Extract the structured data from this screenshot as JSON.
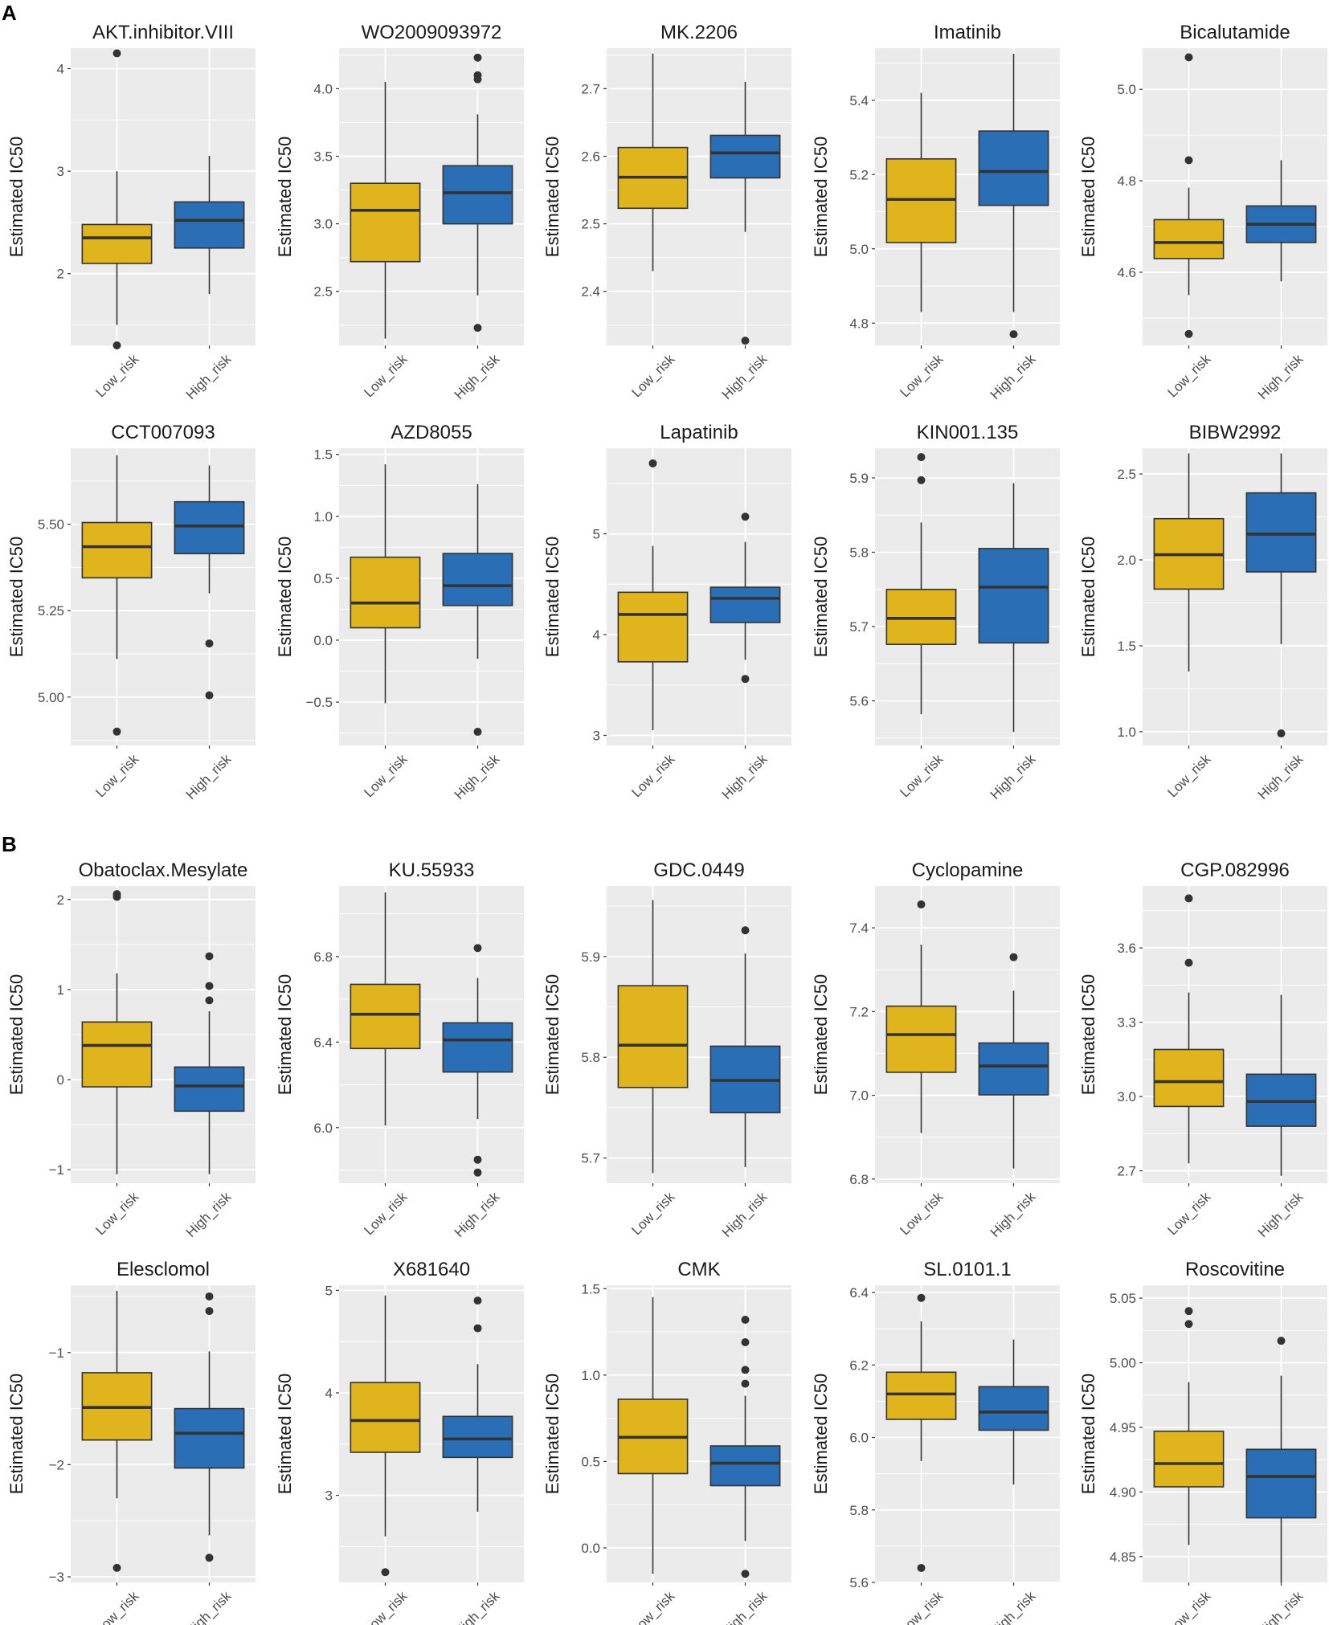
{
  "figure": {
    "panels": [
      "A",
      "B"
    ],
    "y_axis_label": "Estimated IC50",
    "groups": [
      "Low_risk",
      "High_risk"
    ],
    "colors": {
      "low": "#E0B41D",
      "high": "#2A6EB5",
      "panel_bg": "#EBEBEB",
      "grid": "#FFFFFF",
      "line": "#333333"
    }
  },
  "chart_data": [
    {
      "type": "box",
      "panel": "A",
      "title": "AKT.inhibitor.VIII",
      "ylabel": "Estimated IC50",
      "categories": [
        "Low_risk",
        "High_risk"
      ],
      "ylim": [
        1.3,
        4.2
      ],
      "yticks": [
        2,
        3,
        4
      ],
      "tick_labels": [
        "2",
        "3",
        "4"
      ],
      "boxes": [
        {
          "min": 1.5,
          "q1": 2.1,
          "median": 2.35,
          "q3": 2.48,
          "max": 3.0,
          "outliers": [
            4.15,
            1.3
          ]
        },
        {
          "min": 1.8,
          "q1": 2.25,
          "median": 2.52,
          "q3": 2.7,
          "max": 3.15,
          "outliers": []
        }
      ]
    },
    {
      "type": "box",
      "panel": "A",
      "title": "WO2009093972",
      "ylabel": "Estimated IC50",
      "categories": [
        "Low_risk",
        "High_risk"
      ],
      "ylim": [
        2.1,
        4.3
      ],
      "yticks": [
        2.5,
        3.0,
        3.5,
        4.0
      ],
      "tick_labels": [
        "2.5",
        "3.0",
        "3.5",
        "4.0"
      ],
      "boxes": [
        {
          "min": 2.15,
          "q1": 2.72,
          "median": 3.1,
          "q3": 3.3,
          "max": 4.05,
          "outliers": []
        },
        {
          "min": 2.47,
          "q1": 3.0,
          "median": 3.23,
          "q3": 3.43,
          "max": 3.81,
          "outliers": [
            4.23,
            4.1,
            4.07,
            2.23
          ]
        }
      ]
    },
    {
      "type": "box",
      "panel": "A",
      "title": "MK.2206",
      "ylabel": "Estimated IC50",
      "categories": [
        "Low_risk",
        "High_risk"
      ],
      "ylim": [
        2.32,
        2.76
      ],
      "yticks": [
        2.4,
        2.5,
        2.6,
        2.7
      ],
      "tick_labels": [
        "2.4",
        "2.5",
        "2.6",
        "2.7"
      ],
      "boxes": [
        {
          "min": 2.43,
          "q1": 2.523,
          "median": 2.569,
          "q3": 2.613,
          "max": 2.752,
          "outliers": []
        },
        {
          "min": 2.488,
          "q1": 2.568,
          "median": 2.605,
          "q3": 2.631,
          "max": 2.71,
          "outliers": [
            2.327
          ]
        }
      ]
    },
    {
      "type": "box",
      "panel": "A",
      "title": "Imatinib",
      "ylabel": "Estimated IC50",
      "categories": [
        "Low_risk",
        "High_risk"
      ],
      "ylim": [
        4.74,
        5.54
      ],
      "yticks": [
        4.8,
        5.0,
        5.2,
        5.4
      ],
      "tick_labels": [
        "4.8",
        "5.0",
        "5.2",
        "5.4"
      ],
      "boxes": [
        {
          "min": 4.83,
          "q1": 5.017,
          "median": 5.133,
          "q3": 5.242,
          "max": 5.42,
          "outliers": []
        },
        {
          "min": 4.83,
          "q1": 5.117,
          "median": 5.208,
          "q3": 5.317,
          "max": 5.525,
          "outliers": [
            4.77
          ]
        }
      ]
    },
    {
      "type": "box",
      "panel": "A",
      "title": "Bicalutamide",
      "ylabel": "Estimated IC50",
      "categories": [
        "Low_risk",
        "High_risk"
      ],
      "ylim": [
        4.44,
        5.09
      ],
      "yticks": [
        4.6,
        4.8,
        5.0
      ],
      "tick_labels": [
        "4.6",
        "4.8",
        "5.0"
      ],
      "boxes": [
        {
          "min": 4.55,
          "q1": 4.63,
          "median": 4.665,
          "q3": 4.715,
          "max": 4.785,
          "outliers": [
            5.07,
            4.845,
            4.465
          ]
        },
        {
          "min": 4.58,
          "q1": 4.665,
          "median": 4.705,
          "q3": 4.745,
          "max": 4.845,
          "outliers": []
        }
      ]
    },
    {
      "type": "box",
      "panel": "A",
      "title": "CCT007093",
      "ylabel": "Estimated IC50",
      "categories": [
        "Low_risk",
        "High_risk"
      ],
      "ylim": [
        4.86,
        5.72
      ],
      "yticks": [
        5.0,
        5.25,
        5.5
      ],
      "tick_labels": [
        "5.00",
        "5.25",
        "5.50"
      ],
      "boxes": [
        {
          "min": 5.11,
          "q1": 5.345,
          "median": 5.435,
          "q3": 5.505,
          "max": 5.7,
          "outliers": [
            4.9
          ]
        },
        {
          "min": 5.3,
          "q1": 5.415,
          "median": 5.495,
          "q3": 5.565,
          "max": 5.67,
          "outliers": [
            5.155,
            5.005
          ]
        }
      ]
    },
    {
      "type": "box",
      "panel": "A",
      "title": "AZD8055",
      "ylabel": "Estimated IC50",
      "categories": [
        "Low_risk",
        "High_risk"
      ],
      "ylim": [
        -0.85,
        1.55
      ],
      "yticks": [
        -0.5,
        0.0,
        0.5,
        1.0,
        1.5
      ],
      "tick_labels": [
        "−0.5",
        "0.0",
        "0.5",
        "1.0",
        "1.5"
      ],
      "boxes": [
        {
          "min": -0.51,
          "q1": 0.1,
          "median": 0.3,
          "q3": 0.67,
          "max": 1.42,
          "outliers": []
        },
        {
          "min": -0.15,
          "q1": 0.28,
          "median": 0.44,
          "q3": 0.7,
          "max": 1.26,
          "outliers": [
            -0.74
          ]
        }
      ]
    },
    {
      "type": "box",
      "panel": "A",
      "title": "Lapatinib",
      "ylabel": "Estimated IC50",
      "categories": [
        "Low_risk",
        "High_risk"
      ],
      "ylim": [
        2.9,
        5.85
      ],
      "yticks": [
        3,
        4,
        5
      ],
      "tick_labels": [
        "3",
        "4",
        "5"
      ],
      "boxes": [
        {
          "min": 3.05,
          "q1": 3.73,
          "median": 4.2,
          "q3": 4.42,
          "max": 4.88,
          "outliers": [
            5.7
          ]
        },
        {
          "min": 3.75,
          "q1": 4.12,
          "median": 4.36,
          "q3": 4.47,
          "max": 4.92,
          "outliers": [
            5.17,
            3.56
          ]
        }
      ]
    },
    {
      "type": "box",
      "panel": "A",
      "title": "KIN001.135",
      "ylabel": "Estimated IC50",
      "categories": [
        "Low_risk",
        "High_risk"
      ],
      "ylim": [
        5.54,
        5.94
      ],
      "yticks": [
        5.6,
        5.7,
        5.8,
        5.9
      ],
      "tick_labels": [
        "5.6",
        "5.7",
        "5.8",
        "5.9"
      ],
      "boxes": [
        {
          "min": 5.582,
          "q1": 5.676,
          "median": 5.711,
          "q3": 5.75,
          "max": 5.84,
          "outliers": [
            5.928,
            5.897
          ]
        },
        {
          "min": 5.558,
          "q1": 5.678,
          "median": 5.753,
          "q3": 5.805,
          "max": 5.893,
          "outliers": []
        }
      ]
    },
    {
      "type": "box",
      "panel": "A",
      "title": "BIBW2992",
      "ylabel": "Estimated IC50",
      "categories": [
        "Low_risk",
        "High_risk"
      ],
      "ylim": [
        0.92,
        2.65
      ],
      "yticks": [
        1.0,
        1.5,
        2.0,
        2.5
      ],
      "tick_labels": [
        "1.0",
        "1.5",
        "2.0",
        "2.5"
      ],
      "boxes": [
        {
          "min": 1.35,
          "q1": 1.83,
          "median": 2.03,
          "q3": 2.24,
          "max": 2.62,
          "outliers": []
        },
        {
          "min": 1.51,
          "q1": 1.93,
          "median": 2.15,
          "q3": 2.39,
          "max": 2.62,
          "outliers": [
            0.99
          ]
        }
      ]
    },
    {
      "type": "box",
      "panel": "B",
      "title": "Obatoclax.Mesylate",
      "ylabel": "Estimated IC50",
      "categories": [
        "Low_risk",
        "High_risk"
      ],
      "ylim": [
        -1.15,
        2.15
      ],
      "yticks": [
        -1,
        0,
        1,
        2
      ],
      "tick_labels": [
        "−1",
        "0",
        "1",
        "2"
      ],
      "boxes": [
        {
          "min": -1.05,
          "q1": -0.08,
          "median": 0.38,
          "q3": 0.64,
          "max": 1.18,
          "outliers": [
            2.06,
            2.03
          ]
        },
        {
          "min": -1.05,
          "q1": -0.35,
          "median": -0.07,
          "q3": 0.14,
          "max": 0.76,
          "outliers": [
            1.37,
            1.04,
            0.88
          ]
        }
      ]
    },
    {
      "type": "box",
      "panel": "B",
      "title": "KU.55933",
      "ylabel": "Estimated IC50",
      "categories": [
        "Low_risk",
        "High_risk"
      ],
      "ylim": [
        5.74,
        7.13
      ],
      "yticks": [
        6.0,
        6.4,
        6.8
      ],
      "tick_labels": [
        "6.0",
        "6.4",
        "6.8"
      ],
      "boxes": [
        {
          "min": 6.01,
          "q1": 6.37,
          "median": 6.53,
          "q3": 6.67,
          "max": 7.1,
          "outliers": []
        },
        {
          "min": 6.04,
          "q1": 6.26,
          "median": 6.41,
          "q3": 6.49,
          "max": 6.7,
          "outliers": [
            6.84,
            5.85,
            5.79
          ]
        }
      ]
    },
    {
      "type": "box",
      "panel": "B",
      "title": "GDC.0449",
      "ylabel": "Estimated IC50",
      "categories": [
        "Low_risk",
        "High_risk"
      ],
      "ylim": [
        5.675,
        5.97
      ],
      "yticks": [
        5.7,
        5.8,
        5.9
      ],
      "tick_labels": [
        "5.7",
        "5.8",
        "5.9"
      ],
      "boxes": [
        {
          "min": 5.685,
          "q1": 5.77,
          "median": 5.812,
          "q3": 5.871,
          "max": 5.956,
          "outliers": []
        },
        {
          "min": 5.691,
          "q1": 5.745,
          "median": 5.777,
          "q3": 5.811,
          "max": 5.903,
          "outliers": [
            5.926
          ]
        }
      ]
    },
    {
      "type": "box",
      "panel": "B",
      "title": "Cyclopamine",
      "ylabel": "Estimated IC50",
      "categories": [
        "Low_risk",
        "High_risk"
      ],
      "ylim": [
        6.79,
        7.5
      ],
      "yticks": [
        6.8,
        7.0,
        7.2,
        7.4
      ],
      "tick_labels": [
        "6.8",
        "7.0",
        "7.2",
        "7.4"
      ],
      "boxes": [
        {
          "min": 6.91,
          "q1": 7.055,
          "median": 7.145,
          "q3": 7.213,
          "max": 7.36,
          "outliers": [
            7.456
          ]
        },
        {
          "min": 6.825,
          "q1": 7.001,
          "median": 7.07,
          "q3": 7.125,
          "max": 7.25,
          "outliers": [
            7.33
          ]
        }
      ]
    },
    {
      "type": "box",
      "panel": "B",
      "title": "CGP.082996",
      "ylabel": "Estimated IC50",
      "categories": [
        "Low_risk",
        "High_risk"
      ],
      "ylim": [
        2.65,
        3.85
      ],
      "yticks": [
        2.7,
        3.0,
        3.3,
        3.6
      ],
      "tick_labels": [
        "2.7",
        "3.0",
        "3.3",
        "3.6"
      ],
      "boxes": [
        {
          "min": 2.73,
          "q1": 2.96,
          "median": 3.06,
          "q3": 3.19,
          "max": 3.42,
          "outliers": [
            3.8,
            3.54
          ]
        },
        {
          "min": 2.68,
          "q1": 2.88,
          "median": 2.98,
          "q3": 3.09,
          "max": 3.41,
          "outliers": []
        }
      ]
    },
    {
      "type": "box",
      "panel": "B",
      "title": "Elesclomol",
      "ylabel": "Estimated IC50",
      "categories": [
        "Low_risk",
        "High_risk"
      ],
      "ylim": [
        -3.05,
        -0.4
      ],
      "yticks": [
        -3,
        -2,
        -1
      ],
      "tick_labels": [
        "−3",
        "−2",
        "−1"
      ],
      "boxes": [
        {
          "min": -2.3,
          "q1": -1.78,
          "median": -1.49,
          "q3": -1.18,
          "max": -0.45,
          "outliers": [
            -2.92
          ]
        },
        {
          "min": -2.63,
          "q1": -2.03,
          "median": -1.72,
          "q3": -1.5,
          "max": -0.99,
          "outliers": [
            -0.5,
            -0.63,
            -2.83
          ]
        }
      ]
    },
    {
      "type": "box",
      "panel": "B",
      "title": "X681640",
      "ylabel": "Estimated IC50",
      "categories": [
        "Low_risk",
        "High_risk"
      ],
      "ylim": [
        2.15,
        5.05
      ],
      "yticks": [
        3,
        4,
        5
      ],
      "tick_labels": [
        "3",
        "4",
        "5"
      ],
      "boxes": [
        {
          "min": 2.6,
          "q1": 3.42,
          "median": 3.73,
          "q3": 4.1,
          "max": 4.95,
          "outliers": [
            2.25
          ]
        },
        {
          "min": 2.84,
          "q1": 3.37,
          "median": 3.55,
          "q3": 3.77,
          "max": 4.28,
          "outliers": [
            4.9,
            4.63
          ]
        }
      ]
    },
    {
      "type": "box",
      "panel": "B",
      "title": "CMK",
      "ylabel": "Estimated IC50",
      "categories": [
        "Low_risk",
        "High_risk"
      ],
      "ylim": [
        -0.2,
        1.52
      ],
      "yticks": [
        0.0,
        0.5,
        1.0,
        1.5
      ],
      "tick_labels": [
        "0.0",
        "0.5",
        "1.0",
        "1.5"
      ],
      "boxes": [
        {
          "min": -0.15,
          "q1": 0.43,
          "median": 0.64,
          "q3": 0.86,
          "max": 1.45,
          "outliers": []
        },
        {
          "min": 0.04,
          "q1": 0.36,
          "median": 0.49,
          "q3": 0.59,
          "max": 0.88,
          "outliers": [
            1.32,
            1.19,
            1.03,
            0.95,
            -0.15
          ]
        }
      ]
    },
    {
      "type": "box",
      "panel": "B",
      "title": "SL.0101.1",
      "ylabel": "Estimated IC50",
      "categories": [
        "Low_risk",
        "High_risk"
      ],
      "ylim": [
        5.6,
        6.42
      ],
      "yticks": [
        5.6,
        5.8,
        6.0,
        6.2,
        6.4
      ],
      "tick_labels": [
        "5.6",
        "5.8",
        "6.0",
        "6.2",
        "6.4"
      ],
      "boxes": [
        {
          "min": 5.935,
          "q1": 6.05,
          "median": 6.12,
          "q3": 6.18,
          "max": 6.32,
          "outliers": [
            6.385,
            5.64
          ]
        },
        {
          "min": 5.87,
          "q1": 6.02,
          "median": 6.07,
          "q3": 6.14,
          "max": 6.27,
          "outliers": []
        }
      ]
    },
    {
      "type": "box",
      "panel": "B",
      "title": "Roscovitine",
      "ylabel": "Estimated IC50",
      "categories": [
        "Low_risk",
        "High_risk"
      ],
      "ylim": [
        4.83,
        5.06
      ],
      "yticks": [
        4.85,
        4.9,
        4.95,
        5.0,
        5.05
      ],
      "tick_labels": [
        "4.85",
        "4.90",
        "4.95",
        "5.00",
        "5.05"
      ],
      "boxes": [
        {
          "min": 4.859,
          "q1": 4.904,
          "median": 4.922,
          "q3": 4.947,
          "max": 4.985,
          "outliers": [
            5.04,
            5.03
          ]
        },
        {
          "min": 4.83,
          "q1": 4.88,
          "median": 4.912,
          "q3": 4.933,
          "max": 4.99,
          "outliers": [
            5.017
          ]
        }
      ]
    }
  ]
}
